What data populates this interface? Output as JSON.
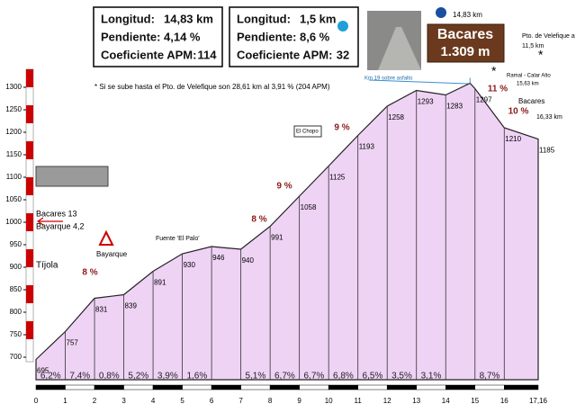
{
  "chart_data": {
    "type": "area",
    "x": [
      0,
      1,
      2,
      3,
      4,
      5,
      6,
      7,
      8,
      9,
      10,
      11,
      12,
      13,
      14,
      14.83,
      15,
      16,
      17.16
    ],
    "values": [
      695,
      757,
      831,
      839,
      891,
      930,
      946,
      940,
      991,
      1058,
      1125,
      1193,
      1258,
      1293,
      1283,
      1309,
      1297,
      1210,
      1185
    ],
    "value_labels": [
      "695",
      "757",
      "831",
      "839",
      "891",
      "930",
      "946",
      "940",
      "991",
      "1058",
      "1125",
      "1193",
      "1258",
      "1293",
      "1283",
      "1.309 m",
      "1297",
      "1210",
      "1185"
    ],
    "color": "#efd3f5",
    "xlim": [
      0,
      17.16
    ],
    "ylim": [
      650,
      1350
    ],
    "xticks": [
      0,
      1,
      2,
      3,
      4,
      5,
      6,
      7,
      8,
      9,
      10,
      11,
      12,
      13,
      14,
      15,
      16,
      {
        "value": 17.16,
        "label": "17,16"
      }
    ],
    "yticks": [
      700,
      750,
      800,
      850,
      900,
      950,
      1000,
      1050,
      1100,
      1150,
      1200,
      1250,
      1300
    ],
    "gradient_labels": [
      "6,2%",
      "7,4%",
      "0,8%",
      "5,2%",
      "3,9%",
      "1,6%",
      null,
      "5,1%",
      "6,7%",
      "6,7%",
      "6,8%",
      "6,5%",
      "3,5%",
      "3,1%",
      null,
      "8,7%",
      null
    ],
    "peak_name": "Bacares",
    "stats": [
      [
        {
          "label": "Longitud:",
          "value": "14,83 km"
        },
        {
          "label": "Pendiente:",
          "value": "4,14 %"
        },
        {
          "label": "Coeficiente APM:",
          "value": "114"
        }
      ],
      [
        {
          "label": "Longitud:",
          "value": "1,5 km"
        },
        {
          "label": "Pendiente:",
          "value": "8,6 %"
        },
        {
          "label": "Coeficiente APM:",
          "value": "32"
        }
      ]
    ],
    "max_gradients": [
      "8 %",
      "8 %",
      "9 %",
      "9 %",
      "11 %",
      "10 %"
    ],
    "annotations": [
      "* Si se sube hasta el Pto. de Velefique son 28,61 km al 3,91 % (204 APM)",
      "Km 19 sobre asfalto",
      "14,83 km",
      "Pto. de Velefique a",
      "11,5 km",
      "*",
      "Ramal - Calar Alto",
      "15,63 km",
      "*",
      "Bacares",
      "16,33 km",
      "El Chopo",
      "Bacares 13",
      "Bayarque 4,2",
      "Tíjola",
      "Bayarque",
      "Fuente 'El Palo'"
    ]
  }
}
